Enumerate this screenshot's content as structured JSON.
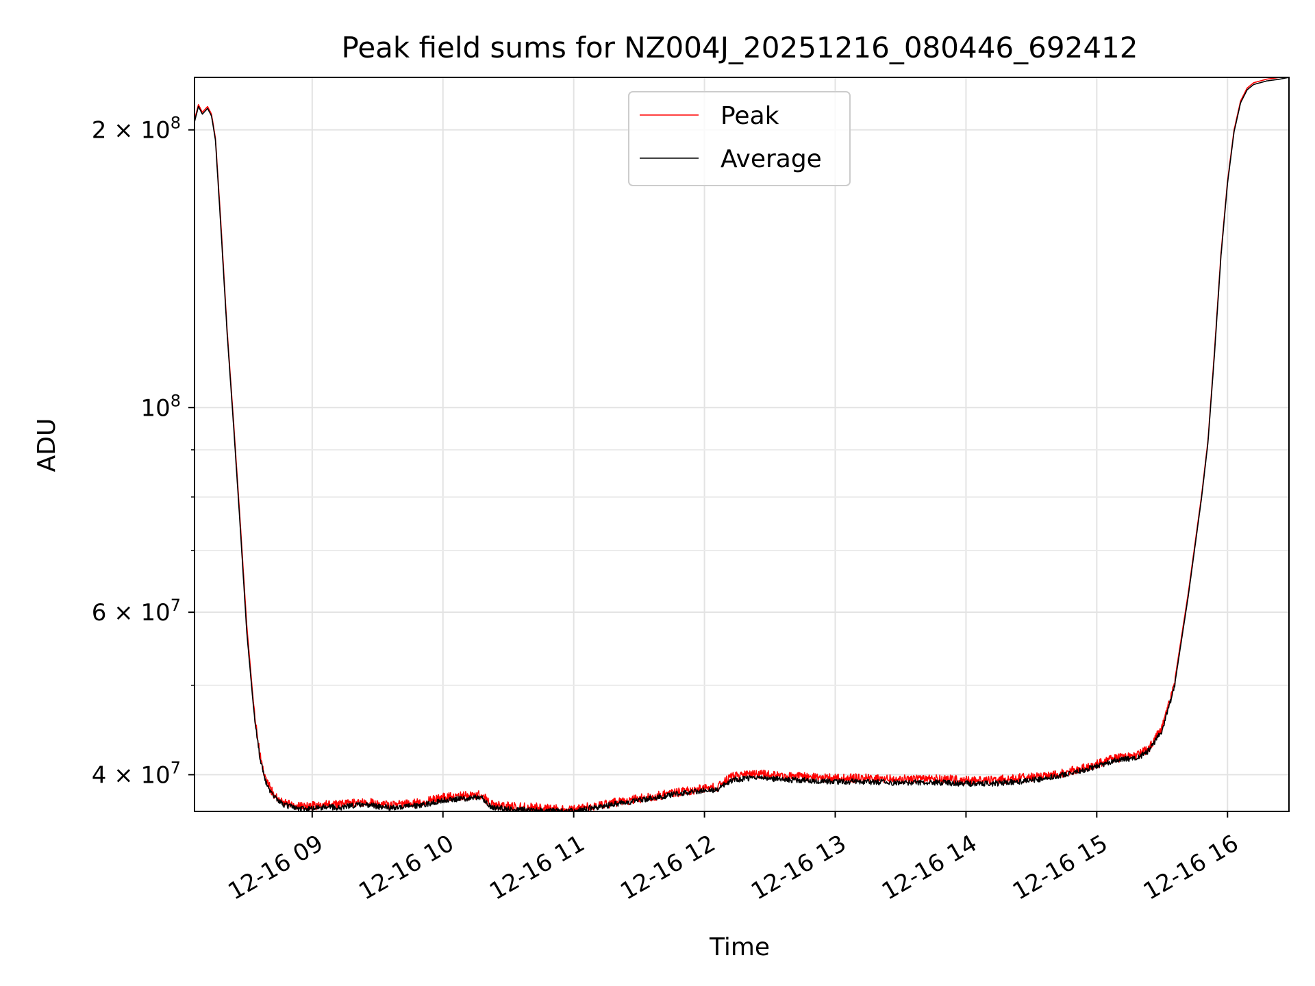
{
  "chart_data": {
    "type": "line",
    "title": "Peak field sums for NZ004J_20251216_080446_692412",
    "xlabel": "Time",
    "ylabel": "ADU",
    "yscale": "log",
    "grid": true,
    "legend_position": "upper center",
    "x_range_hours": [
      8.1,
      16.47
    ],
    "ylim": [
      36500000,
      228000000
    ],
    "x_ticks": [
      {
        "value": 9,
        "label": "12-16 09"
      },
      {
        "value": 10,
        "label": "12-16 10"
      },
      {
        "value": 11,
        "label": "12-16 11"
      },
      {
        "value": 12,
        "label": "12-16 12"
      },
      {
        "value": 13,
        "label": "12-16 13"
      },
      {
        "value": 14,
        "label": "12-16 14"
      },
      {
        "value": 15,
        "label": "12-16 15"
      },
      {
        "value": 16,
        "label": "12-16 16"
      }
    ],
    "y_major_ticks": [
      {
        "value": 40000000,
        "mant": "4",
        "exp": "7"
      },
      {
        "value": 60000000,
        "mant": "6",
        "exp": "7"
      },
      {
        "value": 100000000,
        "mant": "",
        "exp": "8"
      },
      {
        "value": 200000000,
        "mant": "2",
        "exp": "8"
      }
    ],
    "y_minor_ticks": [
      50000000,
      70000000,
      80000000,
      90000000
    ],
    "series": [
      {
        "name": "Peak",
        "color": "#ff0000",
        "x": [
          8.1,
          8.13,
          8.16,
          8.2,
          8.23,
          8.26,
          8.3,
          8.35,
          8.4,
          8.45,
          8.5,
          8.55,
          8.6,
          8.65,
          8.7,
          8.75,
          8.8,
          8.9,
          9.0,
          9.1,
          9.2,
          9.3,
          9.4,
          9.5,
          9.6,
          9.7,
          9.8,
          9.9,
          10.0,
          10.1,
          10.2,
          10.3,
          10.35,
          10.4,
          10.5,
          10.6,
          10.7,
          10.8,
          10.9,
          11.0,
          11.1,
          11.2,
          11.3,
          11.4,
          11.5,
          11.6,
          11.7,
          11.8,
          11.9,
          12.0,
          12.1,
          12.2,
          12.3,
          12.4,
          12.5,
          12.6,
          12.8,
          13.0,
          13.2,
          13.4,
          13.6,
          13.8,
          14.0,
          14.2,
          14.4,
          14.6,
          14.8,
          15.0,
          15.1,
          15.2,
          15.3,
          15.4,
          15.5,
          15.6,
          15.7,
          15.8,
          15.85,
          15.9,
          15.95,
          16.0,
          16.05,
          16.1,
          16.15,
          16.2,
          16.3,
          16.4,
          16.47
        ],
        "y": [
          205000000,
          213000000,
          209000000,
          212000000,
          208000000,
          196000000,
          160000000,
          121000000,
          96000000,
          75000000,
          58000000,
          48000000,
          42500000,
          39800000,
          38600000,
          38000000,
          37700000,
          37400000,
          37400000,
          37600000,
          37500000,
          37700000,
          37800000,
          37600000,
          37500000,
          37600000,
          37700000,
          37900000,
          38200000,
          38300000,
          38400000,
          38500000,
          37700000,
          37500000,
          37400000,
          37300000,
          37300000,
          37200000,
          37100000,
          37100000,
          37300000,
          37500000,
          37700000,
          37900000,
          38100000,
          38300000,
          38500000,
          38700000,
          38900000,
          39100000,
          39200000,
          40200000,
          40400000,
          40500000,
          40400000,
          40300000,
          40200000,
          40100000,
          40100000,
          40000000,
          40000000,
          40000000,
          39900000,
          39900000,
          40100000,
          40300000,
          40800000,
          41500000,
          42000000,
          42300000,
          42300000,
          43200000,
          45500000,
          51000000,
          63000000,
          80000000,
          92000000,
          115000000,
          147000000,
          176000000,
          200000000,
          215000000,
          222000000,
          225000000,
          227000000,
          228000000,
          228000000
        ]
      },
      {
        "name": "Average",
        "color": "#000000",
        "x": [
          8.1,
          8.13,
          8.16,
          8.2,
          8.23,
          8.26,
          8.3,
          8.35,
          8.4,
          8.45,
          8.5,
          8.55,
          8.6,
          8.65,
          8.7,
          8.75,
          8.8,
          8.9,
          9.0,
          9.1,
          9.2,
          9.3,
          9.4,
          9.5,
          9.6,
          9.7,
          9.8,
          9.9,
          10.0,
          10.1,
          10.2,
          10.3,
          10.35,
          10.4,
          10.5,
          10.6,
          10.7,
          10.8,
          10.9,
          11.0,
          11.1,
          11.2,
          11.3,
          11.4,
          11.5,
          11.6,
          11.7,
          11.8,
          11.9,
          12.0,
          12.1,
          12.2,
          12.3,
          12.4,
          12.5,
          12.6,
          12.8,
          13.0,
          13.2,
          13.4,
          13.6,
          13.8,
          14.0,
          14.2,
          14.4,
          14.6,
          14.8,
          15.0,
          15.1,
          15.2,
          15.3,
          15.4,
          15.5,
          15.6,
          15.7,
          15.8,
          15.85,
          15.9,
          15.95,
          16.0,
          16.05,
          16.1,
          16.15,
          16.2,
          16.3,
          16.4,
          16.47
        ],
        "y": [
          204000000,
          212000000,
          208000000,
          211000000,
          207000000,
          195000000,
          158000000,
          120000000,
          95000000,
          74000000,
          57000000,
          47500000,
          42000000,
          39400000,
          38200000,
          37600000,
          37300000,
          37000000,
          37000000,
          37200000,
          37100000,
          37300000,
          37400000,
          37200000,
          37100000,
          37200000,
          37300000,
          37500000,
          37800000,
          37900000,
          38000000,
          38100000,
          37300000,
          37100000,
          37000000,
          36900000,
          36900000,
          36800000,
          36800000,
          36800000,
          37000000,
          37200000,
          37400000,
          37600000,
          37800000,
          38000000,
          38200000,
          38400000,
          38600000,
          38700000,
          38800000,
          39700000,
          39900000,
          40000000,
          39900000,
          39800000,
          39700000,
          39600000,
          39600000,
          39500000,
          39500000,
          39500000,
          39400000,
          39400000,
          39600000,
          39900000,
          40400000,
          41100000,
          41600000,
          41900000,
          41900000,
          42800000,
          45000000,
          50500000,
          62500000,
          79500000,
          91500000,
          114000000,
          146000000,
          175000000,
          199000000,
          214000000,
          221000000,
          224000000,
          226000000,
          227000000,
          228000000
        ]
      }
    ]
  }
}
